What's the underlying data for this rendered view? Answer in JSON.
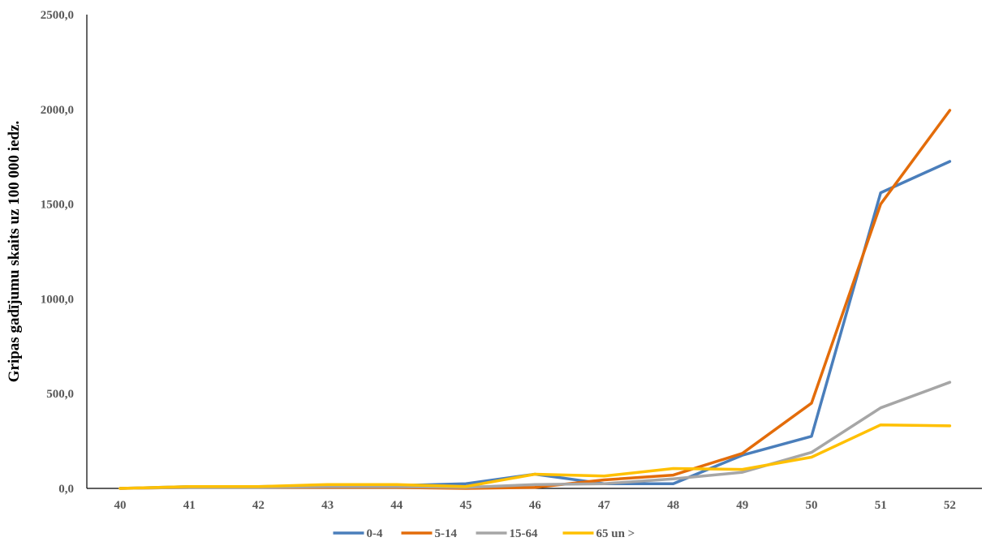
{
  "chart_data": {
    "type": "line",
    "title": "",
    "xlabel": "",
    "ylabel": "Gripas gadījumu skaits uz 100 000 iedz.",
    "categories": [
      "40",
      "41",
      "42",
      "43",
      "44",
      "45",
      "46",
      "47",
      "48",
      "49",
      "50",
      "51",
      "52"
    ],
    "ylim": [
      0,
      2500
    ],
    "yticks": [
      "0,0",
      "500,0",
      "1000,0",
      "1500,0",
      "2000,0",
      "2500,0"
    ],
    "ytick_values": [
      0,
      500,
      1000,
      1500,
      2000,
      2500
    ],
    "grid": false,
    "legend_position": "bottom",
    "series": [
      {
        "name": "0-4",
        "color": "#4a7ebb",
        "values": [
          0,
          10,
          10,
          15,
          15,
          25,
          75,
          25,
          25,
          175,
          275,
          1560,
          1725
        ]
      },
      {
        "name": "5-14",
        "color": "#e36c0a",
        "values": [
          0,
          5,
          5,
          5,
          5,
          0,
          5,
          45,
          70,
          185,
          450,
          1500,
          1995
        ]
      },
      {
        "name": "15-64",
        "color": "#a6a6a6",
        "values": [
          0,
          5,
          5,
          10,
          10,
          5,
          20,
          25,
          50,
          85,
          190,
          425,
          560
        ]
      },
      {
        "name": "65 un >",
        "color": "#ffc000",
        "values": [
          0,
          10,
          10,
          20,
          20,
          10,
          75,
          65,
          105,
          100,
          165,
          335,
          330
        ]
      }
    ]
  }
}
